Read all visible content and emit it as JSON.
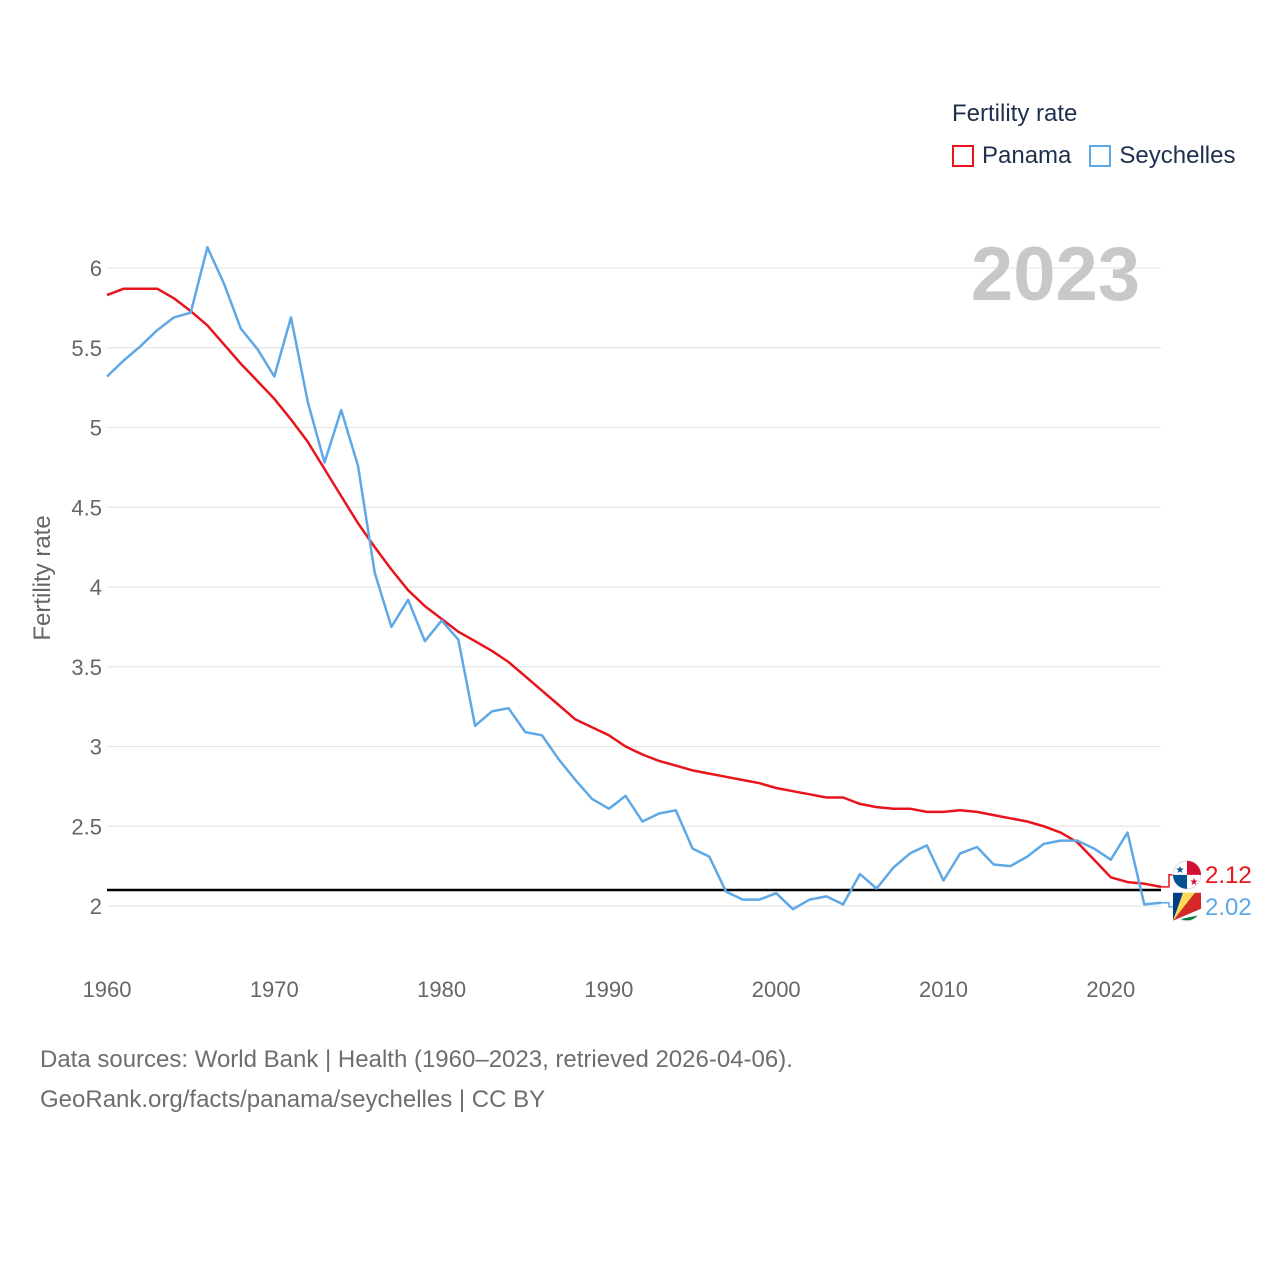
{
  "legend": {
    "title": "Fertility rate",
    "items": [
      {
        "name": "Panama",
        "color": "#e8141b"
      },
      {
        "name": "Seychelles",
        "color": "#5ea8e6"
      }
    ]
  },
  "year_label": "2023",
  "source": {
    "line1": "Data sources: World Bank | Health (1960–2023, retrieved 2026-04-06).",
    "line2": "GeoRank.org/facts/panama/seychelles | CC BY"
  },
  "chart_data": {
    "type": "line",
    "title": "Fertility rate",
    "xlabel": "",
    "ylabel": "Fertility rate",
    "xlim": [
      1960,
      2023
    ],
    "ylim": [
      1.8,
      6.2
    ],
    "x_ticks": [
      1960,
      1970,
      1980,
      1990,
      2000,
      2010,
      2020
    ],
    "y_ticks": [
      2,
      2.5,
      3,
      3.5,
      4,
      4.5,
      5,
      5.5,
      6
    ],
    "reference_line": 2.1,
    "x": [
      1960,
      1961,
      1962,
      1963,
      1964,
      1965,
      1966,
      1967,
      1968,
      1969,
      1970,
      1971,
      1972,
      1973,
      1974,
      1975,
      1976,
      1977,
      1978,
      1979,
      1980,
      1981,
      1982,
      1983,
      1984,
      1985,
      1986,
      1987,
      1988,
      1989,
      1990,
      1991,
      1992,
      1993,
      1994,
      1995,
      1996,
      1997,
      1998,
      1999,
      2000,
      2001,
      2002,
      2003,
      2004,
      2005,
      2006,
      2007,
      2008,
      2009,
      2010,
      2011,
      2012,
      2013,
      2014,
      2015,
      2016,
      2017,
      2018,
      2019,
      2020,
      2021,
      2022,
      2023
    ],
    "series": [
      {
        "name": "Panama",
        "color": "#e8141b",
        "end_label": "2.12",
        "values": [
          5.83,
          5.87,
          5.87,
          5.87,
          5.81,
          5.73,
          5.64,
          5.52,
          5.4,
          5.29,
          5.18,
          5.05,
          4.91,
          4.74,
          4.57,
          4.4,
          4.25,
          4.11,
          3.98,
          3.88,
          3.8,
          3.72,
          3.66,
          3.6,
          3.53,
          3.44,
          3.35,
          3.26,
          3.17,
          3.12,
          3.07,
          3.0,
          2.95,
          2.91,
          2.88,
          2.85,
          2.83,
          2.81,
          2.79,
          2.77,
          2.74,
          2.72,
          2.7,
          2.68,
          2.68,
          2.64,
          2.62,
          2.61,
          2.61,
          2.59,
          2.59,
          2.6,
          2.59,
          2.57,
          2.55,
          2.53,
          2.5,
          2.46,
          2.4,
          2.29,
          2.18,
          2.15,
          2.14,
          2.12
        ]
      },
      {
        "name": "Seychelles",
        "color": "#5ea8e6",
        "end_label": "2.02",
        "values": [
          5.32,
          5.42,
          5.51,
          5.61,
          5.69,
          5.72,
          6.13,
          5.9,
          5.62,
          5.49,
          5.32,
          5.69,
          5.16,
          4.78,
          5.11,
          4.76,
          4.09,
          3.75,
          3.92,
          3.66,
          3.79,
          3.67,
          3.13,
          3.22,
          3.24,
          3.09,
          3.07,
          2.92,
          2.79,
          2.67,
          2.61,
          2.69,
          2.53,
          2.58,
          2.6,
          2.36,
          2.31,
          2.09,
          2.04,
          2.04,
          2.08,
          1.98,
          2.04,
          2.06,
          2.01,
          2.2,
          2.11,
          2.24,
          2.33,
          2.38,
          2.16,
          2.33,
          2.37,
          2.26,
          2.25,
          2.31,
          2.39,
          2.41,
          2.41,
          2.36,
          2.29,
          2.46,
          2.01,
          2.02
        ]
      }
    ]
  }
}
